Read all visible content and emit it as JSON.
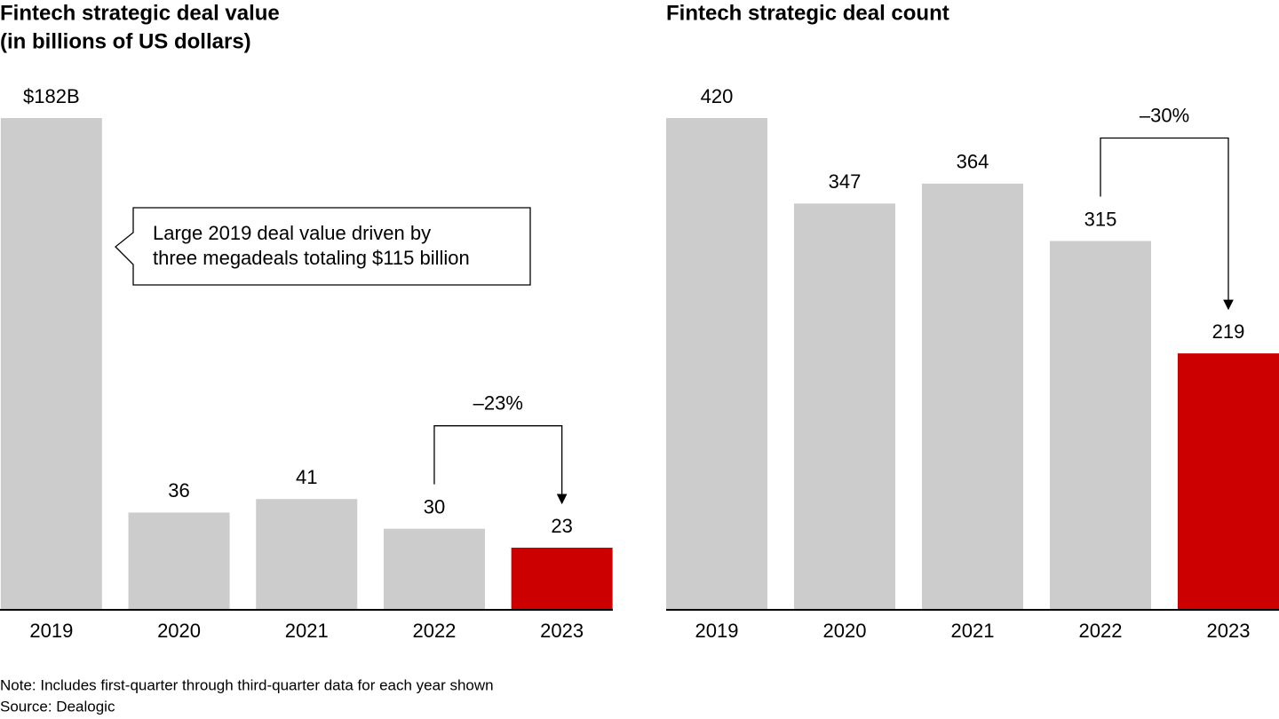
{
  "chart_data": [
    {
      "type": "bar",
      "title": "Fintech strategic deal value",
      "subtitle": "(in billions of US dollars)",
      "categories": [
        "2019",
        "2020",
        "2021",
        "2022",
        "2023"
      ],
      "values": [
        182,
        36,
        41,
        30,
        23
      ],
      "value_labels": [
        "$182B",
        "36",
        "41",
        "30",
        "23"
      ],
      "colors": [
        "#cccccc",
        "#cccccc",
        "#cccccc",
        "#cccccc",
        "#cc0000"
      ],
      "ylim": [
        0,
        182
      ],
      "callout": [
        "Large 2019 deal value driven by",
        "three megadeals totaling $115 billion"
      ],
      "change_label": "–23%"
    },
    {
      "type": "bar",
      "title": "Fintech strategic deal count",
      "categories": [
        "2019",
        "2020",
        "2021",
        "2022",
        "2023"
      ],
      "values": [
        420,
        347,
        364,
        315,
        219
      ],
      "colors": [
        "#cccccc",
        "#cccccc",
        "#cccccc",
        "#cccccc",
        "#cc0000"
      ],
      "ylim": [
        0,
        420
      ],
      "change_label": "–30%"
    }
  ],
  "note": "Note: Includes first-quarter through third-quarter data for each year shown",
  "source": "Source: Dealogic"
}
